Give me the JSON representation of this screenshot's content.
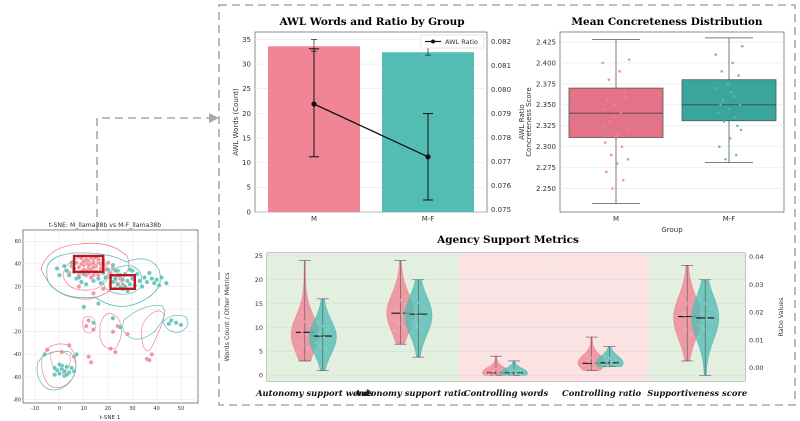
{
  "colors": {
    "pink": "#ef8595",
    "teal": "#54bdb3",
    "pink_dark": "#e37386",
    "teal_dark": "#3aa69b",
    "green_band": "#e3f0df",
    "red_band": "#fbe3e4",
    "highlight_red": "#c0151d"
  },
  "chart_data": [
    {
      "id": "tsne",
      "type": "scatter",
      "title": "t-SNE: M_llama38b vs M-F_llama38b",
      "xlabel": "t-SNE 1",
      "ylabel": "",
      "xlim": [
        -15,
        57
      ],
      "ylim": [
        -83,
        70
      ],
      "xticks": [
        -10,
        0,
        10,
        20,
        30,
        40,
        50
      ],
      "yticks": [
        60,
        40,
        20,
        0,
        -20,
        -40,
        -60,
        -80
      ],
      "series": [
        {
          "name": "M",
          "color": "pink",
          "points": [
            [
              12,
              43
            ],
            [
              13,
              40
            ],
            [
              11,
              41
            ],
            [
              14,
              44
            ],
            [
              12,
              36
            ],
            [
              10,
              39
            ],
            [
              15,
              38
            ],
            [
              11,
              34
            ],
            [
              13,
              35
            ],
            [
              14,
              37
            ],
            [
              9,
              40
            ],
            [
              16,
              41
            ],
            [
              17,
              36
            ],
            [
              8,
              37
            ],
            [
              12,
              32
            ],
            [
              15,
              33
            ],
            [
              10,
              35
            ],
            [
              13,
              46
            ],
            [
              11,
              44
            ],
            [
              16,
              44
            ],
            [
              18,
              38
            ],
            [
              7,
              41
            ],
            [
              9,
              33
            ],
            [
              14,
              30
            ],
            [
              17,
              40
            ],
            [
              10,
              42
            ],
            [
              12,
              39
            ],
            [
              19,
              35
            ],
            [
              6,
              35
            ],
            [
              14,
              41
            ],
            [
              8,
              30
            ],
            [
              20,
              41
            ],
            [
              16,
              30
            ],
            [
              11,
              30
            ],
            [
              18,
              43
            ],
            [
              5,
              38
            ],
            [
              22,
              36
            ],
            [
              9,
              45
            ],
            [
              15,
              46
            ],
            [
              21,
              32
            ],
            [
              4,
              32
            ],
            [
              13,
              28
            ],
            [
              24,
              30
            ],
            [
              25,
              27
            ],
            [
              26,
              22
            ],
            [
              23,
              25
            ],
            [
              12,
              -10
            ],
            [
              11,
              -15
            ],
            [
              14,
              -18
            ],
            [
              22,
              -20
            ],
            [
              24,
              -15
            ],
            [
              28,
              -22
            ],
            [
              21,
              -35
            ],
            [
              23,
              -38
            ],
            [
              36,
              -44
            ],
            [
              37,
              -45
            ],
            [
              38,
              -40
            ],
            [
              13,
              -47
            ],
            [
              12,
              -42
            ],
            [
              1,
              -38
            ],
            [
              6,
              -42
            ],
            [
              -5,
              -36
            ],
            [
              4,
              -32
            ],
            [
              14,
              14
            ],
            [
              8,
              20
            ],
            [
              18,
              18
            ]
          ]
        },
        {
          "name": "M-F",
          "color": "teal",
          "points": [
            [
              25,
              30
            ],
            [
              26,
              26
            ],
            [
              24,
              22
            ],
            [
              27,
              20
            ],
            [
              28,
              25
            ],
            [
              23,
              27
            ],
            [
              26,
              18
            ],
            [
              29,
              22
            ],
            [
              25,
              19
            ],
            [
              30,
              27
            ],
            [
              27,
              31
            ],
            [
              22,
              24
            ],
            [
              24,
              34
            ],
            [
              28,
              16
            ],
            [
              31,
              21
            ],
            [
              33,
              25
            ],
            [
              35,
              28
            ],
            [
              36,
              24
            ],
            [
              32,
              31
            ],
            [
              34,
              20
            ],
            [
              38,
              27
            ],
            [
              39,
              23
            ],
            [
              37,
              32
            ],
            [
              40,
              26
            ],
            [
              41,
              21
            ],
            [
              30,
              34
            ],
            [
              29,
              35
            ],
            [
              6,
              36
            ],
            [
              4,
              30
            ],
            [
              7,
              27
            ],
            [
              5,
              41
            ],
            [
              3,
              34
            ],
            [
              9,
              24
            ],
            [
              8,
              28
            ],
            [
              2,
              38
            ],
            [
              10,
              31
            ],
            [
              11,
              22
            ],
            [
              16,
              27
            ],
            [
              18,
              32
            ],
            [
              20,
              35
            ],
            [
              19,
              28
            ],
            [
              14,
              25
            ],
            [
              21,
              28
            ],
            [
              23,
              34
            ],
            [
              0,
              30
            ],
            [
              6,
              33
            ],
            [
              -1,
              36
            ],
            [
              22,
              39
            ],
            [
              17,
              23
            ],
            [
              42,
              28
            ],
            [
              44,
              23
            ],
            [
              46,
              -10
            ],
            [
              48,
              -12
            ],
            [
              50,
              -14
            ],
            [
              45,
              -13
            ],
            [
              1,
              -53
            ],
            [
              2,
              -55
            ],
            [
              0,
              -57
            ],
            [
              3,
              -51
            ],
            [
              -1,
              -54
            ],
            [
              4,
              -56
            ],
            [
              2,
              -59
            ],
            [
              5,
              -52
            ],
            [
              -2,
              -52
            ],
            [
              1,
              -50
            ],
            [
              3,
              -58
            ],
            [
              0,
              -49
            ],
            [
              6,
              -55
            ],
            [
              -2,
              -58
            ],
            [
              7,
              -40
            ],
            [
              -6,
              -40
            ],
            [
              22,
              -8
            ],
            [
              25,
              -16
            ],
            [
              10,
              2
            ],
            [
              16,
              5
            ],
            [
              14,
              -12
            ]
          ]
        }
      ],
      "highlight_boxes": [
        {
          "center": [
            12,
            40
          ],
          "half": [
            6,
            7
          ]
        },
        {
          "center": [
            26,
            24
          ],
          "half": [
            5,
            6
          ]
        }
      ]
    },
    {
      "id": "awl",
      "type": "bar",
      "title": "AWL Words and Ratio by Group",
      "xlabel": "",
      "ylabel": "AWL Words (Count)",
      "y2label": "AWL Ratio",
      "categories": [
        "M",
        "M-F"
      ],
      "values": [
        33.6,
        32.4
      ],
      "errors": [
        [
          0,
          0
        ],
        [
          0,
          0
        ]
      ],
      "bar_err_top": [
        35.0,
        33.5
      ],
      "bar_err_bottom": [
        32.6,
        31.8
      ],
      "ylim": [
        0,
        36.5
      ],
      "yticks": [
        0,
        5,
        10,
        15,
        20,
        25,
        30,
        35
      ],
      "y2lim": [
        0.0749,
        0.0824
      ],
      "y2ticks": [
        0.075,
        0.076,
        0.077,
        0.078,
        0.079,
        0.08,
        0.081,
        0.082
      ],
      "line_series": {
        "name": "AWL Ratio",
        "values": [
          0.0794,
          0.0772
        ],
        "err_low": [
          0.0772,
          0.0754
        ],
        "err_high": [
          0.0817,
          0.079
        ]
      }
    },
    {
      "id": "concreteness",
      "type": "box",
      "title": "Mean Concreteness Distribution",
      "xlabel": "Group",
      "ylabel": "Concreteness Score",
      "categories": [
        "M",
        "M-F"
      ],
      "ylim": [
        2.222,
        2.437
      ],
      "yticks": [
        2.25,
        2.275,
        2.3,
        2.325,
        2.35,
        2.375,
        2.4,
        2.425
      ],
      "boxes": [
        {
          "min": 2.232,
          "q1": 2.311,
          "median": 2.34,
          "q3": 2.37,
          "max": 2.428
        },
        {
          "min": 2.281,
          "q1": 2.331,
          "median": 2.35,
          "q3": 2.38,
          "max": 2.43
        }
      ],
      "points": [
        [
          2.4,
          2.39,
          2.38,
          2.36,
          2.35,
          2.345,
          2.34,
          2.33,
          2.32,
          2.31,
          2.305,
          2.3,
          2.29,
          2.285,
          2.28,
          2.27,
          2.26,
          2.25,
          2.404,
          2.315,
          2.355,
          2.365,
          2.335,
          2.325
        ],
        [
          2.41,
          2.4,
          2.39,
          2.385,
          2.375,
          2.37,
          2.36,
          2.355,
          2.35,
          2.345,
          2.34,
          2.335,
          2.33,
          2.32,
          2.31,
          2.3,
          2.29,
          2.285,
          2.42,
          2.365,
          2.35,
          2.325
        ]
      ]
    },
    {
      "id": "agency",
      "type": "violin",
      "title": "Agency Support Metrics",
      "ylabel": "Words Count / Other Metrics",
      "y2label": "Ratio Values",
      "categories": [
        "Autonomy support words",
        "Autonomy support ratio",
        "Controlling words",
        "Controlling ratio",
        "Supportiveness score"
      ],
      "bands": [
        "green",
        "green",
        "red",
        "red",
        "green"
      ],
      "ylim": [
        -1.2,
        25.6
      ],
      "yticks": [
        0,
        5,
        10,
        15,
        20,
        25
      ],
      "y2lim": [
        -0.0048,
        0.0414
      ],
      "y2ticks": [
        0.0,
        0.01,
        0.02,
        0.03,
        0.04
      ],
      "violins": [
        {
          "M": {
            "min": 3.0,
            "max": 24.0,
            "median": 9.0,
            "peak": 8.5,
            "spread": 4.0
          },
          "MF": {
            "min": 1.0,
            "max": 16.0,
            "median": 8.2,
            "peak": 8.0,
            "spread": 3.5
          }
        },
        {
          "M": {
            "min": 6.5,
            "max": 24.0,
            "median": 13.0,
            "peak": 13.0,
            "spread": 4.0
          },
          "MF": {
            "min": 3.8,
            "max": 20.0,
            "median": 12.8,
            "peak": 12.5,
            "spread": 4.0
          }
        },
        {
          "M": {
            "min": 0.0,
            "max": 4.0,
            "median": 0.5,
            "peak": 0.6,
            "spread": 1.0
          },
          "MF": {
            "min": 0.0,
            "max": 3.0,
            "median": 0.5,
            "peak": 0.5,
            "spread": 0.9
          }
        },
        {
          "M": {
            "min": 1.0,
            "max": 8.0,
            "median": 2.5,
            "peak": 2.6,
            "spread": 1.6
          },
          "MF": {
            "min": 1.8,
            "max": 6.0,
            "median": 2.6,
            "peak": 2.6,
            "spread": 1.4
          }
        },
        {
          "M": {
            "min": 3.0,
            "max": 23.0,
            "median": 12.3,
            "peak": 12.0,
            "spread": 4.5
          },
          "MF": {
            "min": 0.0,
            "max": 20.0,
            "median": 12.0,
            "peak": 12.0,
            "spread": 4.5
          }
        }
      ]
    }
  ]
}
